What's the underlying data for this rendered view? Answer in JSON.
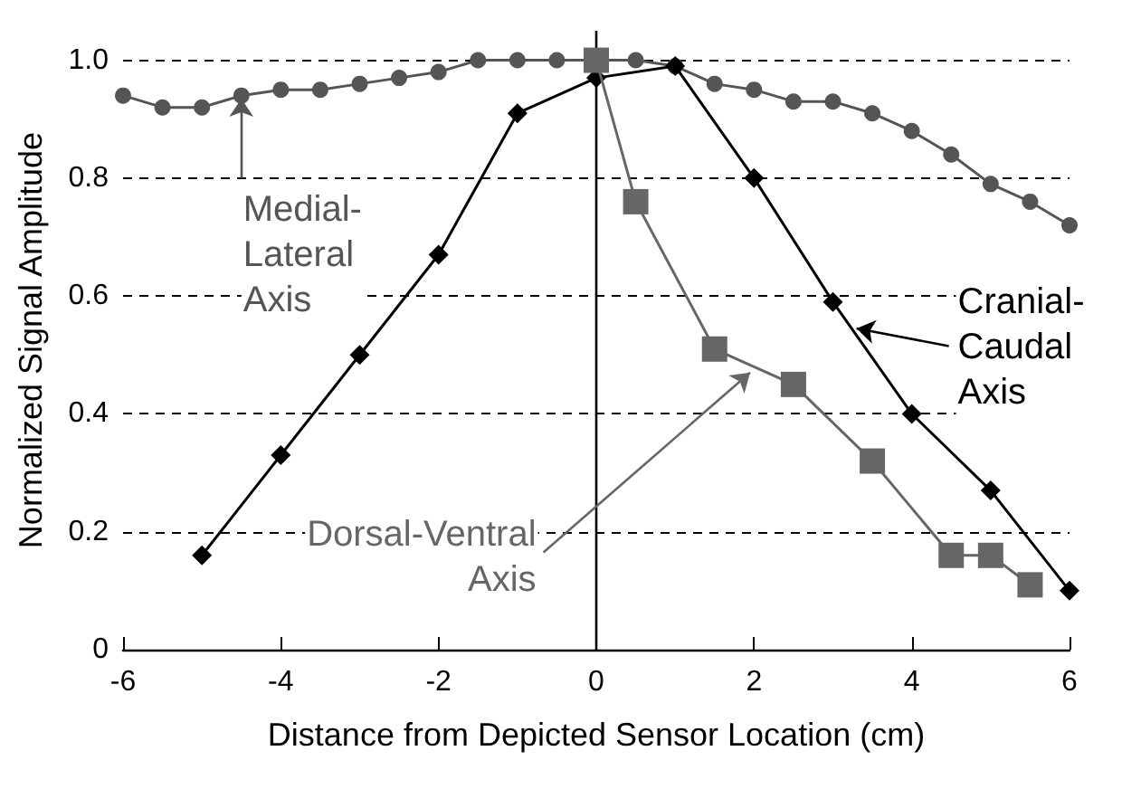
{
  "chart_data": {
    "type": "line",
    "xlabel": "Distance from Depicted Sensor Location (cm)",
    "ylabel": "Normalized Signal Amplitude",
    "xlim": [
      -6,
      6
    ],
    "xticks": [
      -6,
      -4,
      -2,
      0,
      2,
      4,
      6
    ],
    "ylim": [
      0,
      1.05
    ],
    "yticks": [
      0,
      0.2,
      0.4,
      0.6,
      {
        "value": 0.8,
        "label": "0.8"
      },
      {
        "value": 1,
        "label": "1.0"
      }
    ],
    "grid": "y",
    "line_style": "solid",
    "ref_lines": [
      {
        "axis": "x",
        "value": 0,
        "color": "#000000",
        "line_style": "solid"
      }
    ],
    "series": [
      {
        "name": "Medial-Lateral Axis",
        "color": "#555555",
        "marker": "circle",
        "x": [
          -6,
          -5.5,
          -5,
          -4.5,
          -4,
          -3.5,
          -3,
          -2.5,
          -2,
          -1.5,
          -1,
          -0.5,
          0,
          0.5,
          1,
          1.5,
          2,
          2.5,
          3,
          3.5,
          4,
          4.5,
          5,
          5.5,
          6
        ],
        "values": [
          0.94,
          0.92,
          0.92,
          0.94,
          0.95,
          0.95,
          0.96,
          0.97,
          0.98,
          1.0,
          1.0,
          1.0,
          1.0,
          1.0,
          0.99,
          0.96,
          0.95,
          0.93,
          0.93,
          0.91,
          0.88,
          0.84,
          0.79,
          0.76,
          0.72
        ]
      },
      {
        "name": "Cranial-Caudal Axis",
        "color": "#000000",
        "marker": "diamond",
        "x": [
          -5,
          -4,
          -3,
          -2,
          -1,
          0,
          1,
          2,
          3,
          4,
          5,
          6
        ],
        "values": [
          0.16,
          0.33,
          0.5,
          0.67,
          0.91,
          0.97,
          0.99,
          0.8,
          0.59,
          0.4,
          0.27,
          0.1
        ]
      },
      {
        "name": "Dorsal-Ventral Axis",
        "color": "#666666",
        "marker": "square",
        "x": [
          0,
          0.5,
          1.5,
          2.5,
          3.5,
          4.5,
          5,
          5.5
        ],
        "values": [
          1.0,
          0.76,
          0.51,
          0.45,
          0.32,
          0.16,
          0.16,
          0.11
        ]
      }
    ]
  }
}
